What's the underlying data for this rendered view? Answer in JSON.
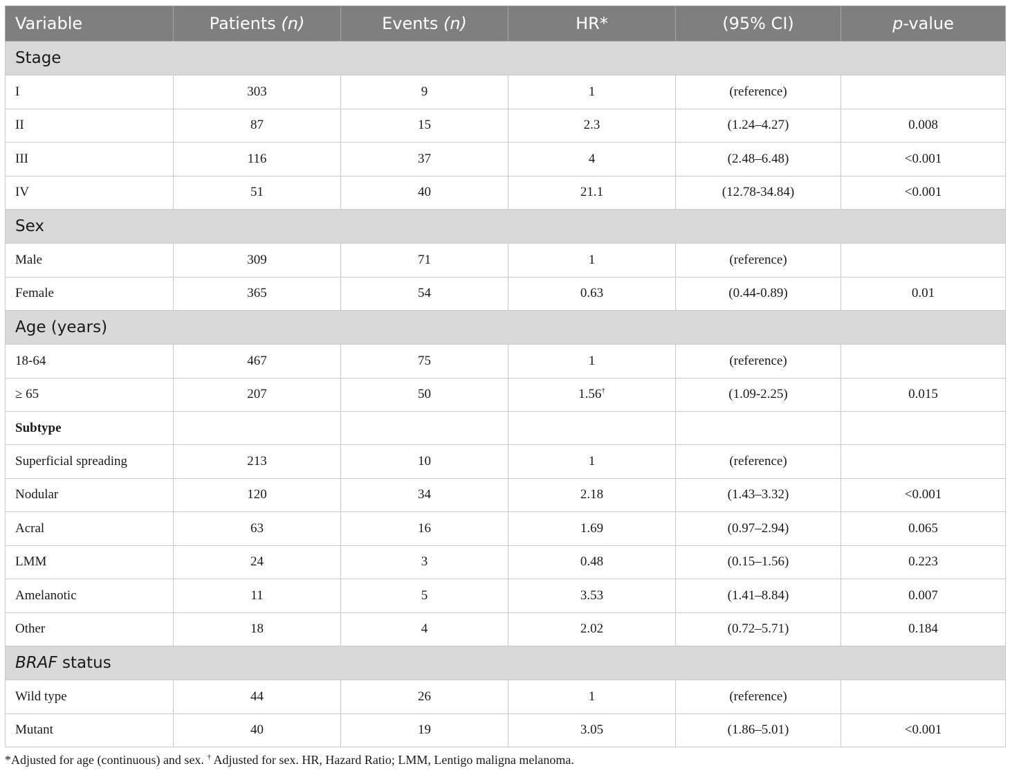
{
  "header": {
    "variable": "Variable",
    "patients": "Patients ",
    "patients_n": "(n)",
    "events": "Events ",
    "events_n": "(n)",
    "hr": "HR*",
    "ci": "(95% CI)",
    "p_italic": "p",
    "p_rest": "-value"
  },
  "sections": {
    "stage": {
      "title": "Stage",
      "rows": [
        {
          "label": "I",
          "patients": "303",
          "events": "9",
          "hr": "1",
          "ci": "(reference)",
          "p": ""
        },
        {
          "label": "II",
          "patients": "87",
          "events": "15",
          "hr": "2.3",
          "ci": "(1.24–4.27)",
          "p": "0.008"
        },
        {
          "label": "III",
          "patients": "116",
          "events": "37",
          "hr": "4",
          "ci": "(2.48–6.48)",
          "p": "<0.001"
        },
        {
          "label": "IV",
          "patients": "51",
          "events": "40",
          "hr": "21.1",
          "ci": "(12.78-34.84)",
          "p": "<0.001"
        }
      ]
    },
    "sex": {
      "title": "Sex",
      "rows": [
        {
          "label": "Male",
          "patients": "309",
          "events": "71",
          "hr": "1",
          "ci": "(reference)",
          "p": ""
        },
        {
          "label": "Female",
          "patients": "365",
          "events": "54",
          "hr": "0.63",
          "ci": "(0.44-0.89)",
          "p": "0.01"
        }
      ]
    },
    "age": {
      "title": "Age (years)",
      "rows": [
        {
          "label": "18-64",
          "patients": "467",
          "events": "75",
          "hr": "1",
          "ci": "(reference)",
          "p": ""
        },
        {
          "label": "≥ 65",
          "patients": "207",
          "events": "50",
          "hr": "1.56",
          "hr_sup": "†",
          "ci": "(1.09-2.25)",
          "p": "0.015"
        }
      ]
    },
    "subtype": {
      "title": "Subtype",
      "rows": [
        {
          "label": "Superficial spreading",
          "patients": "213",
          "events": "10",
          "hr": "1",
          "ci": "(reference)",
          "p": ""
        },
        {
          "label": "Nodular",
          "patients": "120",
          "events": "34",
          "hr": "2.18",
          "ci": "(1.43–3.32)",
          "p": "<0.001"
        },
        {
          "label": "Acral",
          "patients": "63",
          "events": "16",
          "hr": "1.69",
          "ci": "(0.97–2.94)",
          "p": "0.065"
        },
        {
          "label": "LMM",
          "patients": "24",
          "events": "3",
          "hr": "0.48",
          "ci": "(0.15–1.56)",
          "p": "0.223"
        },
        {
          "label": "Amelanotic",
          "patients": "11",
          "events": "5",
          "hr": "3.53",
          "ci": "(1.41–8.84)",
          "p": "0.007"
        },
        {
          "label": "Other",
          "patients": "18",
          "events": "4",
          "hr": "2.02",
          "ci": "(0.72–5.71)",
          "p": "0.184"
        }
      ]
    },
    "braf": {
      "title_italic": "BRAF",
      "title_rest": " status",
      "rows": [
        {
          "label": "Wild type",
          "patients": "44",
          "events": "26",
          "hr": "1",
          "ci": "(reference)",
          "p": ""
        },
        {
          "label": "Mutant",
          "patients": "40",
          "events": "19",
          "hr": "3.05",
          "ci": "(1.86–5.01)",
          "p": "<0.001"
        }
      ]
    }
  },
  "footnote": {
    "part1": "*Adjusted for age (continuous) and sex. ",
    "dagger": "†",
    "part2": " Adjusted for sex. HR, Hazard Ratio; LMM, Lentigo maligna melanoma."
  }
}
